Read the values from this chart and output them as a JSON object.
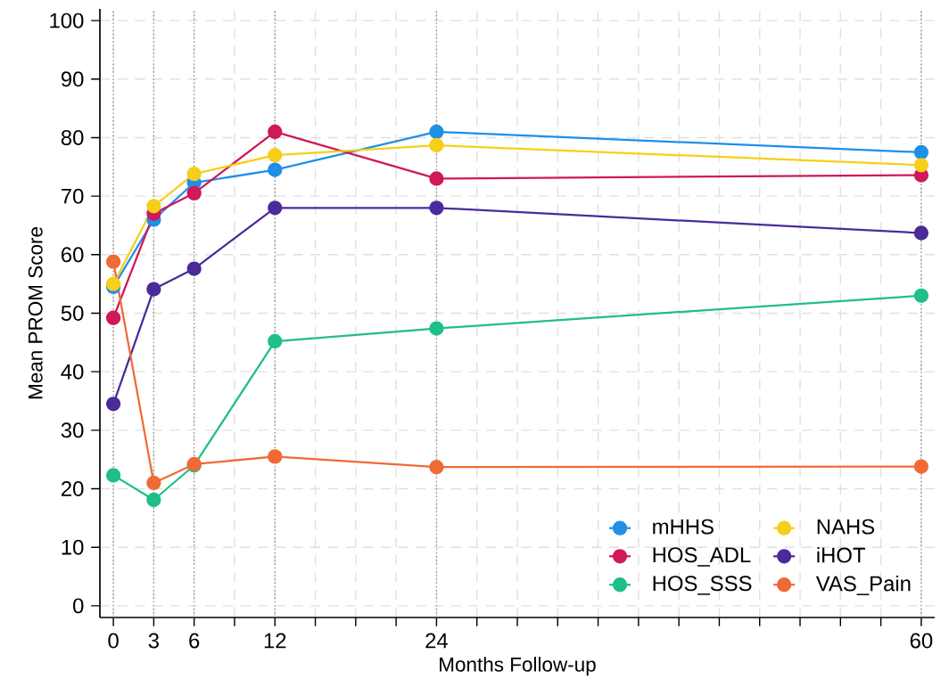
{
  "chart_data": {
    "type": "line",
    "xlabel": "Months Follow-up",
    "ylabel": "Mean PROM Score",
    "x": [
      0,
      3,
      6,
      12,
      24,
      60
    ],
    "series": [
      {
        "name": "mHHS",
        "color": "#1f8fe8",
        "values": [
          54.5,
          66,
          72.3,
          74.5,
          81,
          77.5
        ]
      },
      {
        "name": "HOS_ADL",
        "color": "#d0185a",
        "values": [
          49.2,
          67,
          70.5,
          81,
          73,
          73.6
        ]
      },
      {
        "name": "HOS_SSS",
        "color": "#1fbf86",
        "values": [
          22.3,
          18.1,
          24,
          45.2,
          47.4,
          53
        ]
      },
      {
        "name": "NAHS",
        "color": "#f5cf1a",
        "values": [
          55,
          68.3,
          73.8,
          77,
          78.7,
          75.3
        ]
      },
      {
        "name": "iHOT",
        "color": "#4b2a9a",
        "values": [
          34.5,
          54.1,
          57.6,
          68,
          68,
          63.7
        ]
      },
      {
        "name": "VAS_Pain",
        "color": "#f06a35",
        "values": [
          58.8,
          21,
          24.2,
          25.5,
          23.7,
          23.8
        ]
      }
    ],
    "xlim": [
      -1,
      61
    ],
    "ylim": [
      -2,
      102
    ],
    "xticks": [
      0,
      3,
      6,
      {
        "value": 9,
        "label": null
      },
      12,
      {
        "value": 15,
        "label": null
      },
      {
        "value": 18,
        "label": null
      },
      {
        "value": 21,
        "label": null
      },
      24,
      {
        "value": 27,
        "label": null
      },
      {
        "value": 30,
        "label": null
      },
      {
        "value": 33,
        "label": null
      },
      {
        "value": 36,
        "label": null
      },
      {
        "value": 39,
        "label": null
      },
      {
        "value": 42,
        "label": null
      },
      {
        "value": 45,
        "label": null
      },
      {
        "value": 48,
        "label": null
      },
      {
        "value": 51,
        "label": null
      },
      {
        "value": 54,
        "label": null
      },
      {
        "value": 57,
        "label": null
      },
      60
    ],
    "yticks": [
      0,
      10,
      20,
      30,
      40,
      50,
      60,
      70,
      80,
      90,
      100
    ],
    "grid": true,
    "legend": "bottom right",
    "marker": "circle",
    "line_style": "solid"
  }
}
